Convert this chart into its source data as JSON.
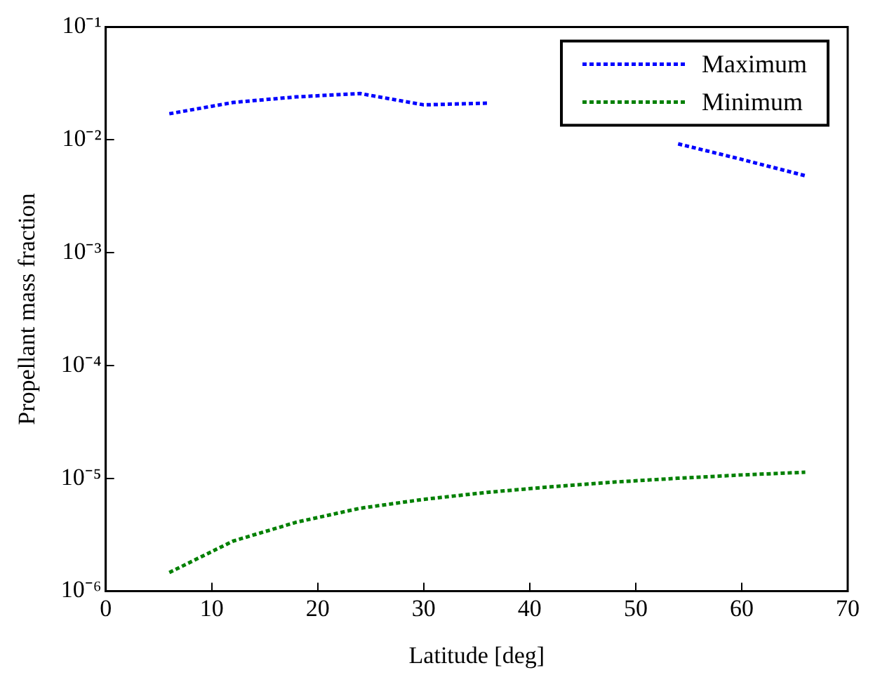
{
  "chart_data": {
    "type": "line",
    "xlabel": "Latitude [deg]",
    "ylabel": "Propellant mass fraction",
    "x": [
      6,
      12,
      18,
      24,
      30,
      36,
      42,
      48,
      54,
      60,
      66
    ],
    "series": [
      {
        "name": "Maximum",
        "color": "#0000ff",
        "values": [
          0.017,
          0.0214,
          0.024,
          0.0257,
          0.0204,
          0.0211,
          null,
          null,
          0.0092,
          0.0067,
          0.0048
        ]
      },
      {
        "name": "Minimum",
        "color": "#008000",
        "values": [
          1.46e-06,
          2.77e-06,
          4.08e-06,
          5.42e-06,
          6.5e-06,
          7.5e-06,
          8.4e-06,
          9.25e-06,
          1e-05,
          1.07e-05,
          1.13e-05
        ]
      }
    ],
    "xlim": [
      0,
      70
    ],
    "xticks": [
      0,
      10,
      20,
      30,
      40,
      50,
      60,
      70
    ],
    "ylim": [
      1e-06,
      0.1
    ],
    "yticks": [
      {
        "value": 1e-06,
        "label": "10⁻⁶"
      },
      {
        "value": 1e-05,
        "label": "10⁻⁵"
      },
      {
        "value": 0.0001,
        "label": "10⁻⁴"
      },
      {
        "value": 0.001,
        "label": "10⁻³"
      },
      {
        "value": 0.01,
        "label": "10⁻²"
      },
      {
        "value": 0.1,
        "label": "10⁻¹"
      }
    ],
    "log": true,
    "grid": false,
    "legend": "top right",
    "marker": "none",
    "line_style": "dotted"
  }
}
